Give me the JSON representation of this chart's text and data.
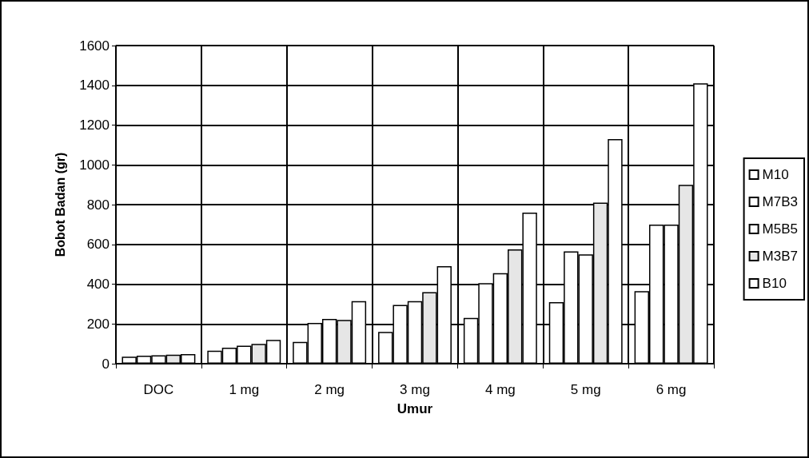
{
  "chart_data": {
    "type": "bar",
    "xlabel": "Umur",
    "ylabel": "Bobot Badan (gr)",
    "categories": [
      "DOC",
      "1 mg",
      "2 mg",
      "3 mg",
      "4 mg",
      "5 mg",
      "6 mg"
    ],
    "series": [
      {
        "name": "M10",
        "color": "#ffffff",
        "values": [
          35,
          65,
          110,
          160,
          230,
          310,
          365
        ]
      },
      {
        "name": "M7B3",
        "color": "#ffffff",
        "values": [
          40,
          80,
          205,
          295,
          405,
          565,
          700
        ]
      },
      {
        "name": "M5B5",
        "color": "#ffffff",
        "values": [
          42,
          90,
          225,
          315,
          455,
          550,
          700
        ]
      },
      {
        "name": "M3B7",
        "color": "#e6e6e6",
        "values": [
          45,
          100,
          220,
          360,
          575,
          810,
          900
        ]
      },
      {
        "name": "B10",
        "color": "#ffffff",
        "values": [
          48,
          120,
          315,
          490,
          760,
          1130,
          1410
        ]
      }
    ],
    "ylim": [
      0,
      1600
    ],
    "yticks": [
      0,
      200,
      400,
      600,
      800,
      1000,
      1200,
      1400,
      1600
    ],
    "grid": true,
    "legend": "right"
  }
}
